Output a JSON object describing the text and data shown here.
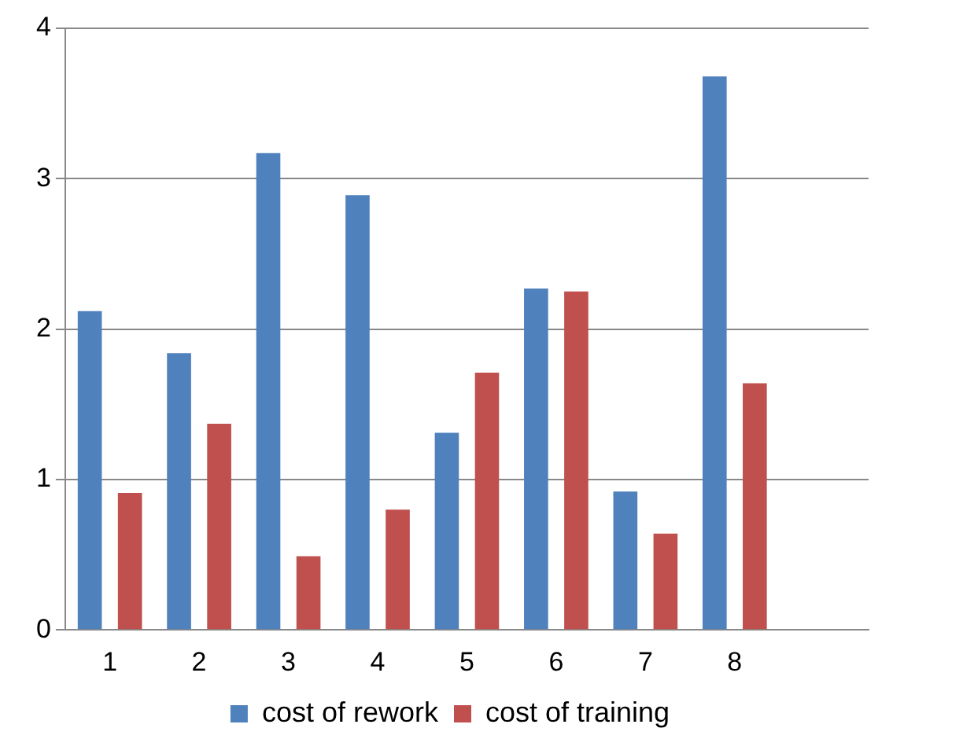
{
  "chart_data": {
    "type": "bar",
    "categories": [
      "1",
      "2",
      "3",
      "4",
      "5",
      "6",
      "7",
      "8",
      null
    ],
    "series": [
      {
        "name": "cost of rework",
        "color": "#4f81bd",
        "values": [
          2.12,
          1.84,
          3.17,
          2.89,
          1.31,
          2.27,
          0.92,
          3.68,
          null
        ]
      },
      {
        "name": "cost of training",
        "color": "#c0504d",
        "values": [
          0.91,
          1.37,
          0.49,
          0.8,
          1.71,
          2.25,
          0.64,
          1.64,
          null
        ]
      }
    ],
    "ylim": [
      0,
      4
    ],
    "yticks": [
      0,
      1,
      2,
      3,
      4
    ],
    "grid": "y",
    "legend": "bottom"
  }
}
